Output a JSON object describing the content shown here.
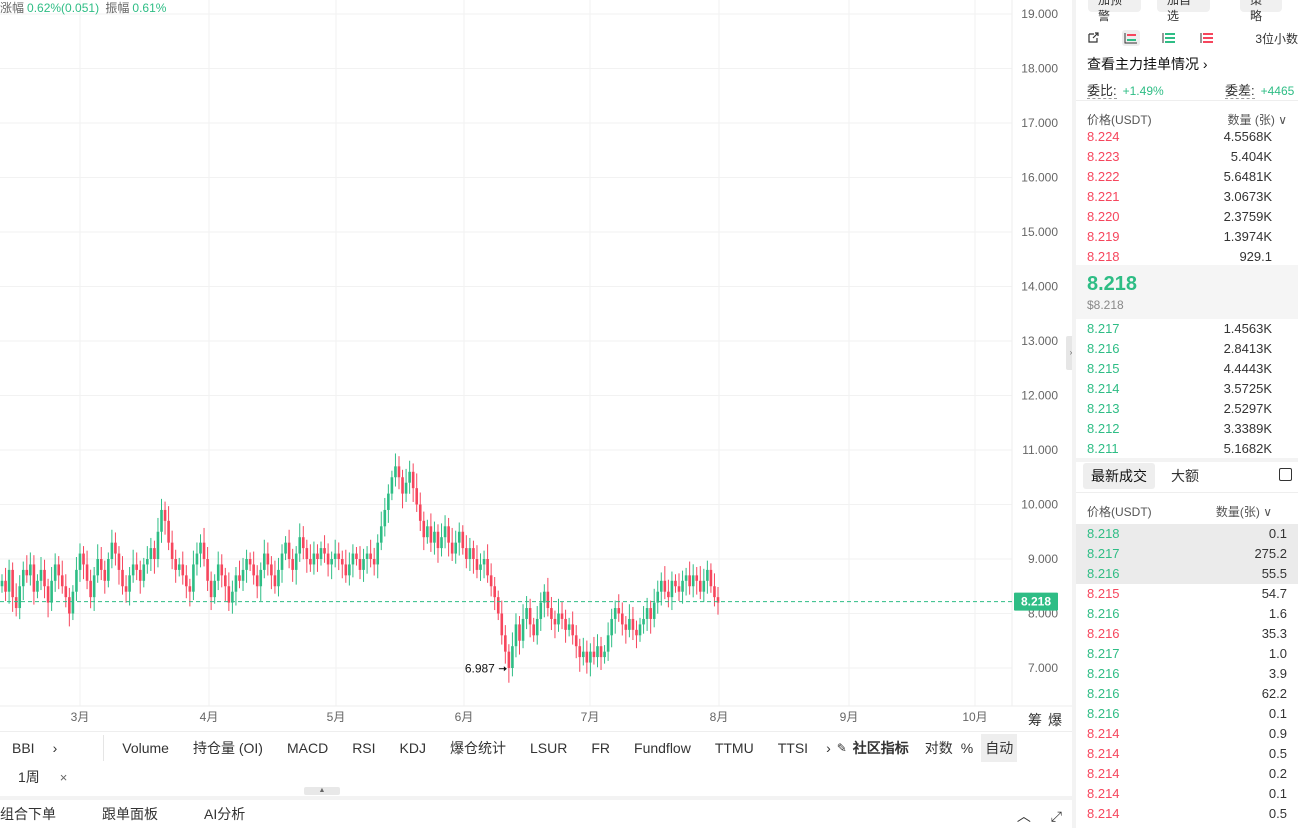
{
  "stats": {
    "change_label": "涨幅",
    "change_value": "0.62%(0.051)",
    "amp_label": "振幅",
    "amp_value": "0.61%"
  },
  "colors": {
    "up": "#2ebd85",
    "down": "#f6465d",
    "grid": "#f2f2f2"
  },
  "chart_data": {
    "type": "candlestick",
    "y_ticks": [
      "19.000",
      "18.000",
      "17.000",
      "16.000",
      "15.000",
      "14.000",
      "13.000",
      "12.000",
      "11.000",
      "10.000",
      "9.000",
      "8.000",
      "7.000"
    ],
    "ylim": [
      6.3,
      19.2
    ],
    "x_ticks": [
      "3月",
      "4月",
      "5月",
      "6月",
      "7月",
      "8月",
      "9月",
      "10月"
    ],
    "last_price": 8.218,
    "last_price_label": "8.218",
    "low_marker": {
      "value": 6.987,
      "label": "6.987"
    },
    "closes": [
      8.6,
      8.4,
      8.8,
      8.3,
      8.1,
      8.5,
      8.8,
      8.7,
      8.9,
      8.4,
      8.6,
      8.8,
      8.5,
      8.2,
      8.6,
      8.9,
      8.7,
      8.5,
      8.3,
      8.0,
      8.4,
      8.8,
      9.1,
      8.9,
      8.6,
      8.3,
      8.7,
      9.0,
      8.8,
      8.6,
      9.0,
      9.3,
      9.1,
      8.8,
      8.5,
      8.4,
      8.7,
      8.9,
      8.8,
      8.6,
      8.9,
      9.0,
      9.2,
      9.0,
      9.5,
      9.9,
      9.7,
      9.3,
      9.0,
      8.8,
      8.9,
      8.7,
      8.5,
      8.4,
      8.9,
      9.1,
      9.3,
      9.0,
      8.6,
      8.3,
      8.6,
      8.9,
      8.7,
      8.5,
      8.2,
      8.4,
      8.7,
      8.6,
      8.8,
      9.0,
      8.9,
      8.7,
      8.5,
      8.8,
      9.1,
      8.9,
      8.7,
      8.5,
      8.8,
      9.1,
      9.3,
      9.0,
      8.8,
      9.1,
      9.4,
      9.2,
      9.0,
      8.9,
      9.1,
      9.0,
      9.2,
      9.1,
      8.9,
      9.0,
      9.1,
      9.0,
      8.9,
      8.7,
      8.9,
      9.1,
      9.0,
      8.8,
      9.0,
      9.1,
      9.0,
      8.9,
      9.3,
      9.6,
      9.9,
      10.2,
      10.5,
      10.7,
      10.5,
      10.2,
      10.4,
      10.6,
      10.3,
      10.0,
      9.7,
      9.4,
      9.6,
      9.3,
      9.5,
      9.2,
      9.4,
      9.6,
      9.3,
      9.1,
      9.3,
      9.5,
      9.2,
      9.0,
      9.2,
      9.0,
      8.8,
      8.9,
      9.0,
      8.7,
      8.5,
      8.3,
      8.0,
      7.6,
      7.3,
      7.0,
      7.4,
      7.8,
      7.5,
      7.9,
      8.1,
      7.8,
      7.6,
      7.9,
      8.2,
      8.4,
      8.1,
      7.9,
      7.8,
      8.0,
      7.9,
      7.7,
      7.8,
      7.6,
      7.4,
      7.2,
      7.3,
      7.1,
      7.3,
      7.2,
      7.4,
      7.2,
      7.3,
      7.6,
      7.9,
      8.1,
      8.0,
      7.8,
      7.7,
      7.9,
      7.7,
      7.6,
      7.8,
      7.9,
      8.1,
      7.9,
      8.2,
      8.4,
      8.6,
      8.4,
      8.3,
      8.6,
      8.5,
      8.4,
      8.6,
      8.7,
      8.5,
      8.7,
      8.6,
      8.4,
      8.6,
      8.8,
      8.5,
      8.3,
      8.2
    ]
  },
  "axis_tools": [
    "筹",
    "爆"
  ],
  "indicators": {
    "first": "BBI",
    "items": [
      "Volume",
      "持仓量 (OI)",
      "MACD",
      "RSI",
      "KDJ",
      "爆仓统计",
      "LSUR",
      "FR",
      "Fundflow",
      "TTMU",
      "TTSI"
    ],
    "community": "社区指标",
    "log": "对数",
    "percent": "%",
    "auto": "自动"
  },
  "period": {
    "label": "1周",
    "close": "×"
  },
  "bottom_tabs": [
    "组合下单",
    "跟单面板",
    "AI分析"
  ],
  "panel": {
    "top_buttons": [
      "加预警",
      "加自选",
      "策略"
    ],
    "decimals": "3位小数",
    "major_link": "查看主力挂单情况 ›",
    "ratio_label": "委比:",
    "ratio_value": "+1.49%",
    "diff_label": "委差:",
    "diff_value": "+4465",
    "ob_head_price": "价格(USDT)",
    "ob_head_qty": "数量 (张) ∨",
    "asks": [
      {
        "p": "8.224",
        "q": "4.5568K"
      },
      {
        "p": "8.223",
        "q": "5.404K"
      },
      {
        "p": "8.222",
        "q": "5.6481K"
      },
      {
        "p": "8.221",
        "q": "3.0673K"
      },
      {
        "p": "8.220",
        "q": "2.3759K"
      },
      {
        "p": "8.219",
        "q": "1.3974K"
      },
      {
        "p": "8.218",
        "q": "929.1"
      }
    ],
    "mid_price": "8.218",
    "mid_usd": "$8.218",
    "bids": [
      {
        "p": "8.217",
        "q": "1.4563K"
      },
      {
        "p": "8.216",
        "q": "2.8413K"
      },
      {
        "p": "8.215",
        "q": "4.4443K"
      },
      {
        "p": "8.214",
        "q": "3.5725K"
      },
      {
        "p": "8.213",
        "q": "2.5297K"
      },
      {
        "p": "8.212",
        "q": "3.3389K"
      },
      {
        "p": "8.211",
        "q": "5.1682K"
      }
    ],
    "trade_tab_active": "最新成交",
    "trade_tab_2": "大额",
    "tr_head_price": "价格(USDT)",
    "tr_head_qty": "数量(张) ∨",
    "trades": [
      {
        "p": "8.218",
        "q": "0.1",
        "s": "up"
      },
      {
        "p": "8.217",
        "q": "275.2",
        "s": "up"
      },
      {
        "p": "8.216",
        "q": "55.5",
        "s": "up"
      },
      {
        "p": "8.215",
        "q": "54.7",
        "s": "down"
      },
      {
        "p": "8.216",
        "q": "1.6",
        "s": "up"
      },
      {
        "p": "8.216",
        "q": "35.3",
        "s": "down"
      },
      {
        "p": "8.217",
        "q": "1.0",
        "s": "up"
      },
      {
        "p": "8.216",
        "q": "3.9",
        "s": "up"
      },
      {
        "p": "8.216",
        "q": "62.2",
        "s": "up"
      },
      {
        "p": "8.216",
        "q": "0.1",
        "s": "up"
      },
      {
        "p": "8.214",
        "q": "0.9",
        "s": "down"
      },
      {
        "p": "8.214",
        "q": "0.5",
        "s": "down"
      },
      {
        "p": "8.214",
        "q": "0.2",
        "s": "down"
      },
      {
        "p": "8.214",
        "q": "0.1",
        "s": "down"
      },
      {
        "p": "8.214",
        "q": "0.5",
        "s": "down"
      }
    ]
  }
}
